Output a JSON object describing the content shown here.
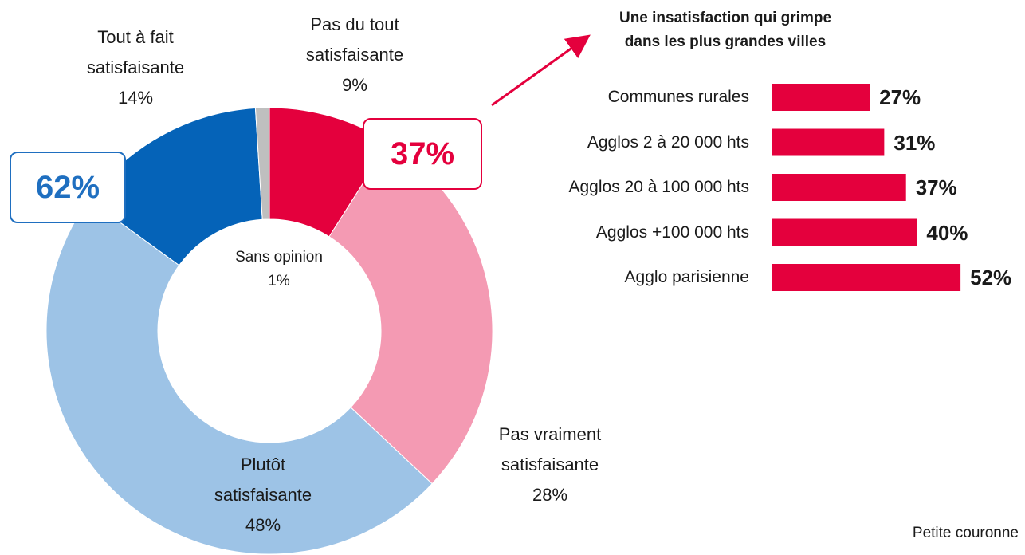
{
  "chart_data": [
    {
      "type": "pie",
      "donut": true,
      "categories": [
        "Pas du tout satisfaisante",
        "Pas vraiment satisfaisante",
        "Plutôt satisfaisante",
        "Tout à fait satisfaisante",
        "Sans opinion"
      ],
      "values": [
        9,
        28,
        48,
        14,
        1
      ],
      "value_labels": [
        "9%",
        "28%",
        "48%",
        "14%",
        "1%"
      ],
      "colors": [
        "#e4003d",
        "#f49ab3",
        "#9dc3e6",
        "#0563b8",
        "#bfbfbf"
      ],
      "annotations": [
        {
          "text": "62%",
          "color": "#1f6fc0"
        },
        {
          "text": "37%",
          "color": "#e4003d"
        }
      ]
    },
    {
      "type": "bar",
      "orientation": "horizontal",
      "title": [
        "Une insatisfaction qui grimpe",
        "dans les plus grandes villes"
      ],
      "categories": [
        "Communes rurales",
        "Agglos 2 à 20 000 hts",
        "Agglos 20 à 100 000 hts",
        "Agglos +100 000 hts",
        "Agglo parisienne"
      ],
      "values": [
        27,
        31,
        37,
        40,
        52
      ],
      "value_labels": [
        "27%",
        "31%",
        "37%",
        "40%",
        "52%"
      ],
      "color": "#e4003d"
    }
  ],
  "note": "Petite couronne"
}
